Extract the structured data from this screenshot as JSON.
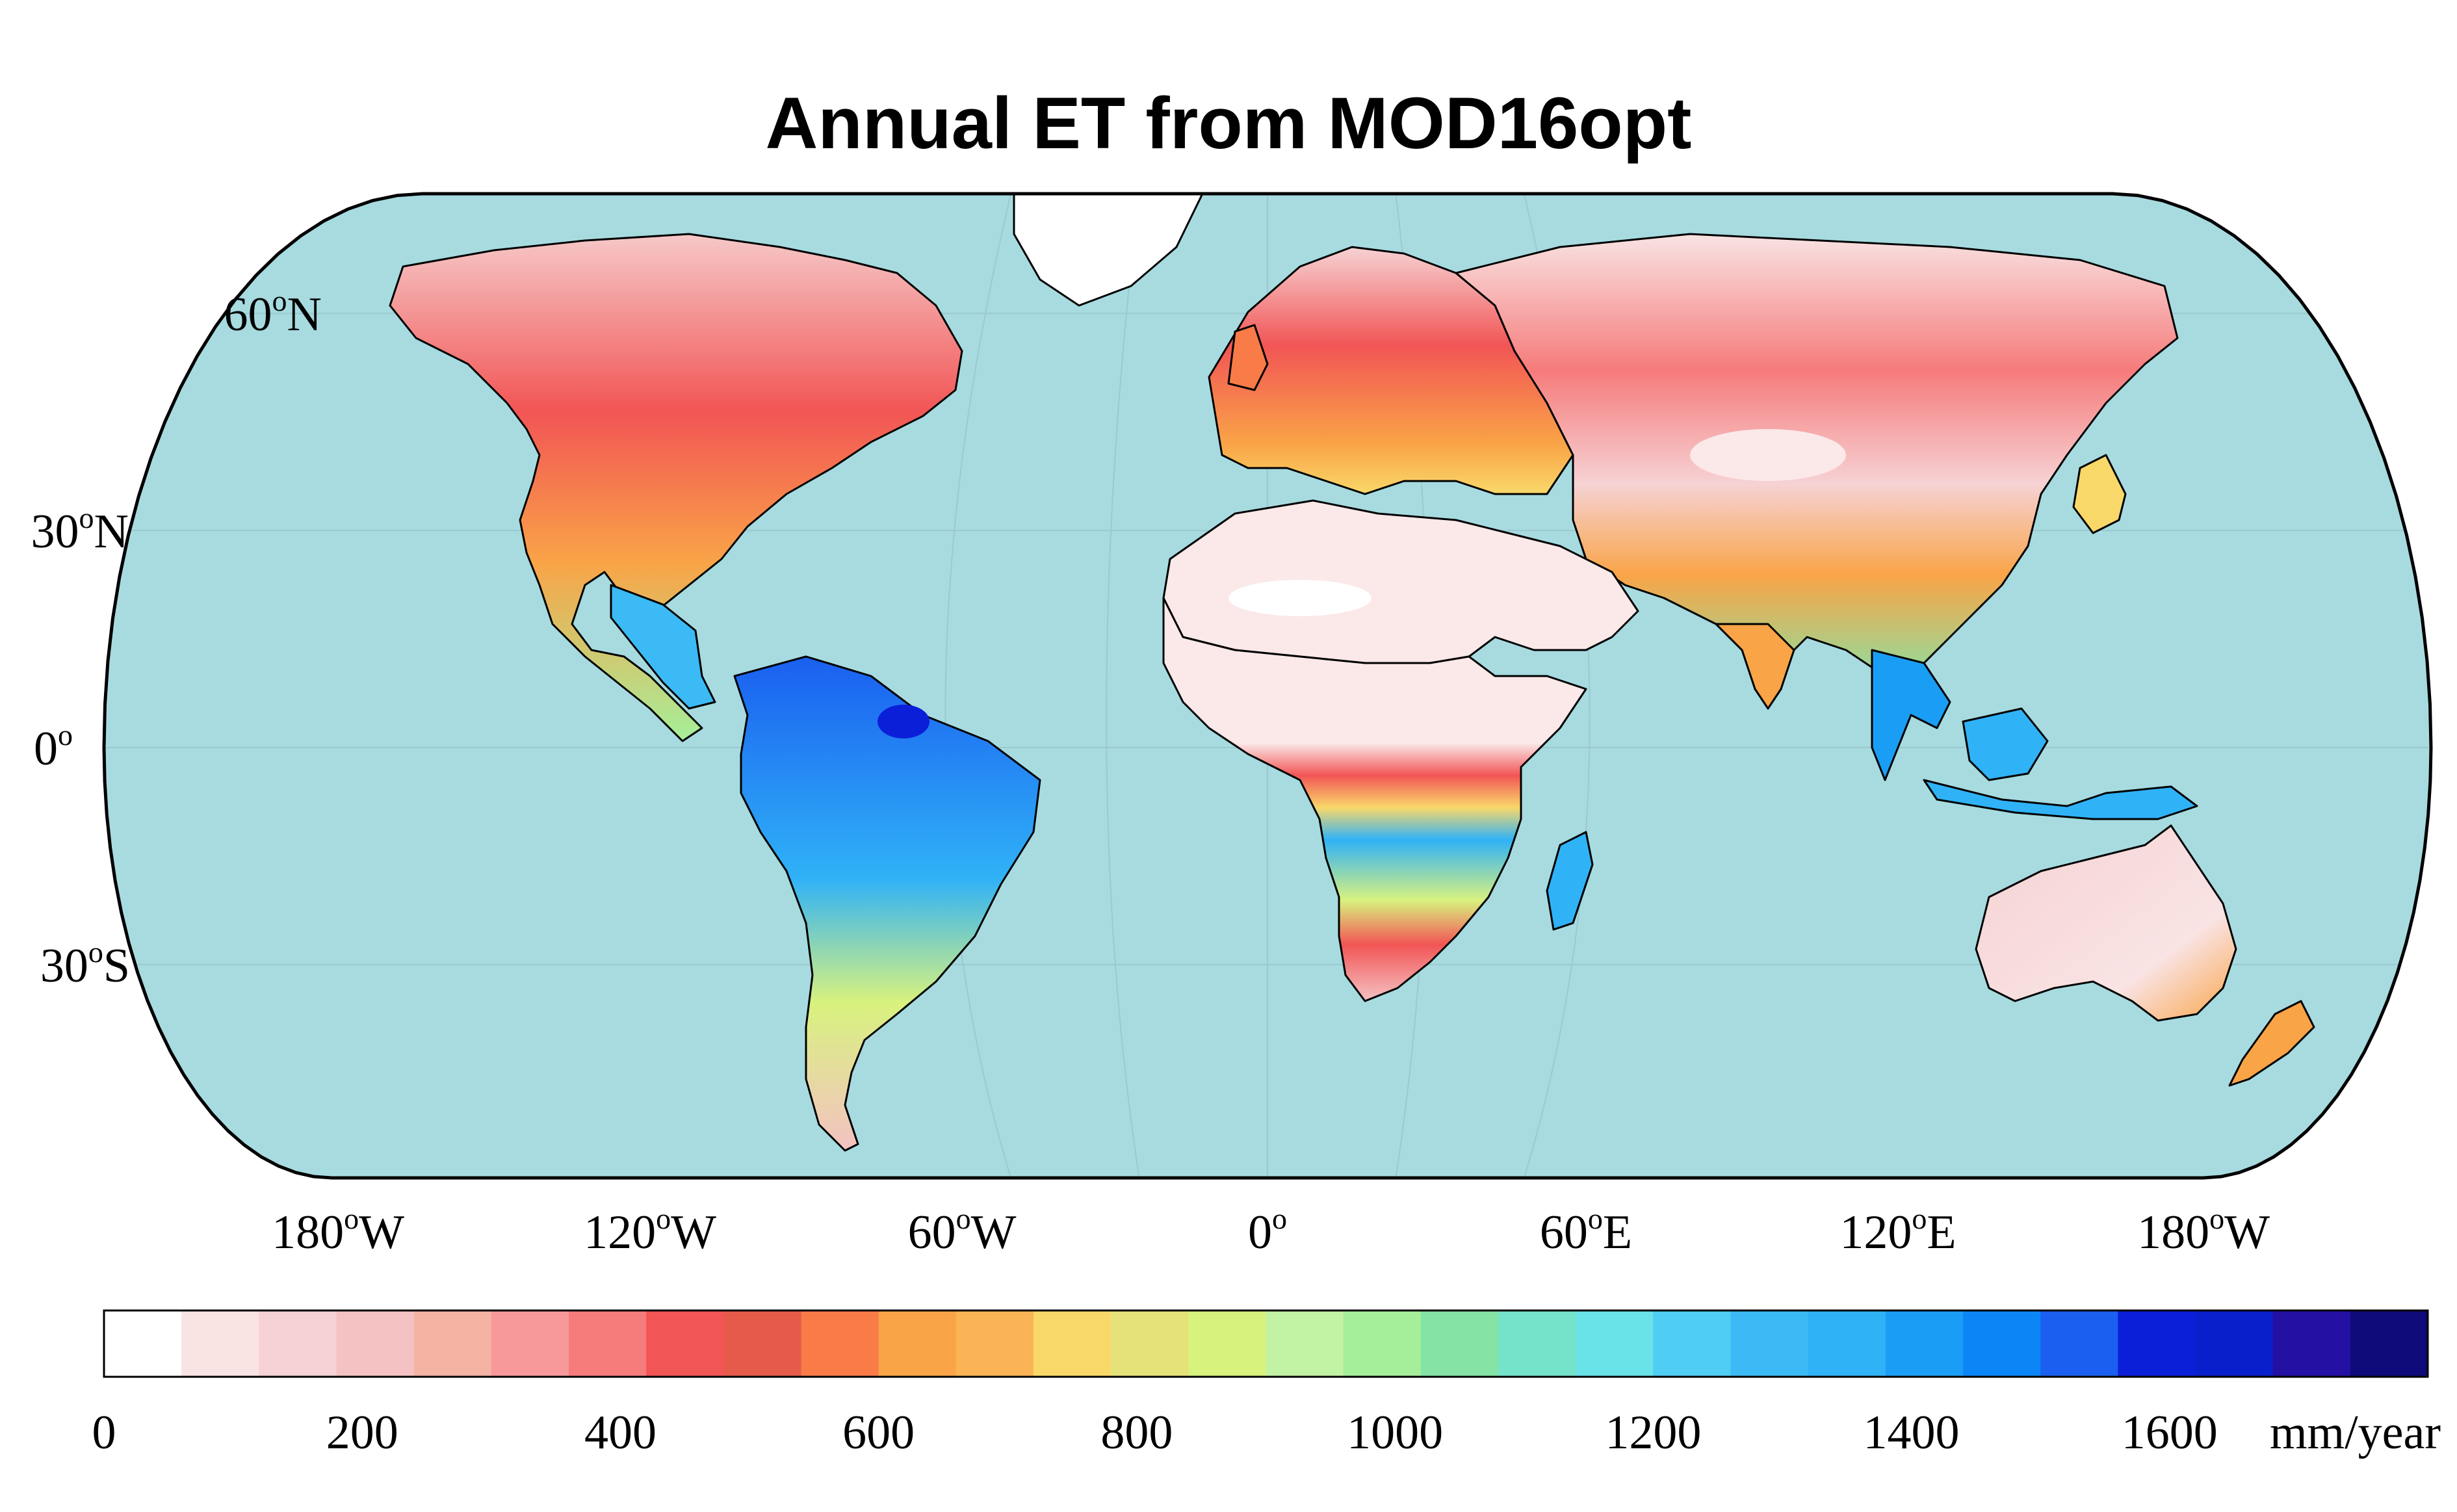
{
  "title": "Annual ET from MOD16opt",
  "colors": {
    "ocean": "#a7dbe0",
    "coast": "#000000",
    "frame": "#000000"
  },
  "lon_ticks": [
    {
      "deg": "180",
      "hem": "W",
      "lon": -180
    },
    {
      "deg": "120",
      "hem": "W",
      "lon": -120
    },
    {
      "deg": "60",
      "hem": "W",
      "lon": -60
    },
    {
      "deg": "0",
      "hem": "",
      "lon": 0
    },
    {
      "deg": "60",
      "hem": "E",
      "lon": 60
    },
    {
      "deg": "120",
      "hem": "E",
      "lon": 120
    },
    {
      "deg": "180",
      "hem": "W",
      "lon": 180
    }
  ],
  "lat_ticks": [
    {
      "deg": "60",
      "hem": "N",
      "lat": 60
    },
    {
      "deg": "30",
      "hem": "N",
      "lat": 30
    },
    {
      "deg": "0",
      "hem": "",
      "lat": 0
    },
    {
      "deg": "30",
      "hem": "S",
      "lat": -30
    }
  ],
  "colorbar": {
    "min": 0,
    "max": 1600,
    "unit": "mm/year",
    "tick_values": [
      "0",
      "200",
      "400",
      "600",
      "800",
      "1000",
      "1200",
      "1400",
      "1600"
    ],
    "colors": [
      "#ffffff",
      "#f9e3e3",
      "#f6d2d4",
      "#f4c2c3",
      "#f5b3a3",
      "#f7999b",
      "#f67b7b",
      "#f25555",
      "#e65a4a",
      "#f97b47",
      "#f9a447",
      "#fbb455",
      "#f9d86a",
      "#e6e27a",
      "#d8f27e",
      "#c2f2a4",
      "#a6ef9a",
      "#85e3a6",
      "#75e3c9",
      "#69e3e8",
      "#4fcdf2",
      "#3bbaf5",
      "#30b2f7",
      "#1a9ef5",
      "#0c86f7",
      "#1a5ff0",
      "#0b1fd9",
      "#0a1fcc",
      "#2410a3",
      "#0f0a7a"
    ]
  },
  "regions": [
    {
      "name": "greenland",
      "color": "#ffffff"
    },
    {
      "name": "north-america",
      "color": "#f67b7b"
    },
    {
      "name": "central-america",
      "color": "#3bbaf5"
    },
    {
      "name": "south-america",
      "color": "#1a9ef5"
    },
    {
      "name": "europe",
      "color": "#f97b47"
    },
    {
      "name": "russia",
      "color": "#f67b7b"
    },
    {
      "name": "sahara-arabia",
      "color": "#f9e3e3"
    },
    {
      "name": "africa-central",
      "color": "#30b2f7"
    },
    {
      "name": "africa-south",
      "color": "#f9d86a"
    },
    {
      "name": "asia-south",
      "color": "#85e3a6"
    },
    {
      "name": "southeast-asia",
      "color": "#1a9ef5"
    },
    {
      "name": "australia",
      "color": "#f6d2d4"
    },
    {
      "name": "new-zealand",
      "color": "#f9a447"
    },
    {
      "name": "madagascar",
      "color": "#30b2f7"
    }
  ]
}
